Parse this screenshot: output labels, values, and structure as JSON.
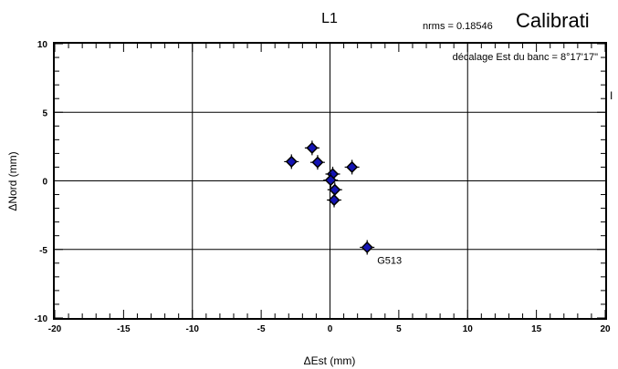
{
  "page": {
    "title_fragment": "Calibrati",
    "right_edge_fragment": "I"
  },
  "chart_data": {
    "type": "scatter",
    "title": "L1",
    "xlabel": "ΔEst (mm)",
    "ylabel": "ΔNord (mm)",
    "xlim": [
      -20,
      20
    ],
    "ylim": [
      -10,
      10
    ],
    "xticks": [
      -20,
      -15,
      -10,
      -5,
      0,
      5,
      10,
      15,
      20
    ],
    "yticks": [
      -10,
      -5,
      0,
      5,
      10
    ],
    "grid": true,
    "annotations": {
      "nrms": "nrms = 0.18546",
      "offset": "décalage Est du banc = 8°17'17\""
    },
    "marker_color": "#1414b4",
    "series": [
      {
        "points": [
          {
            "x": -2.8,
            "y": 1.4
          },
          {
            "x": -1.3,
            "y": 2.4
          },
          {
            "x": -0.9,
            "y": 1.35
          },
          {
            "x": 1.6,
            "y": 1.0
          },
          {
            "x": 0.2,
            "y": 0.5
          },
          {
            "x": 0.05,
            "y": 0.05
          },
          {
            "x": 0.35,
            "y": -0.65
          },
          {
            "x": 0.3,
            "y": -1.4
          },
          {
            "x": 2.7,
            "y": -4.85,
            "label": "G513"
          }
        ]
      }
    ]
  }
}
